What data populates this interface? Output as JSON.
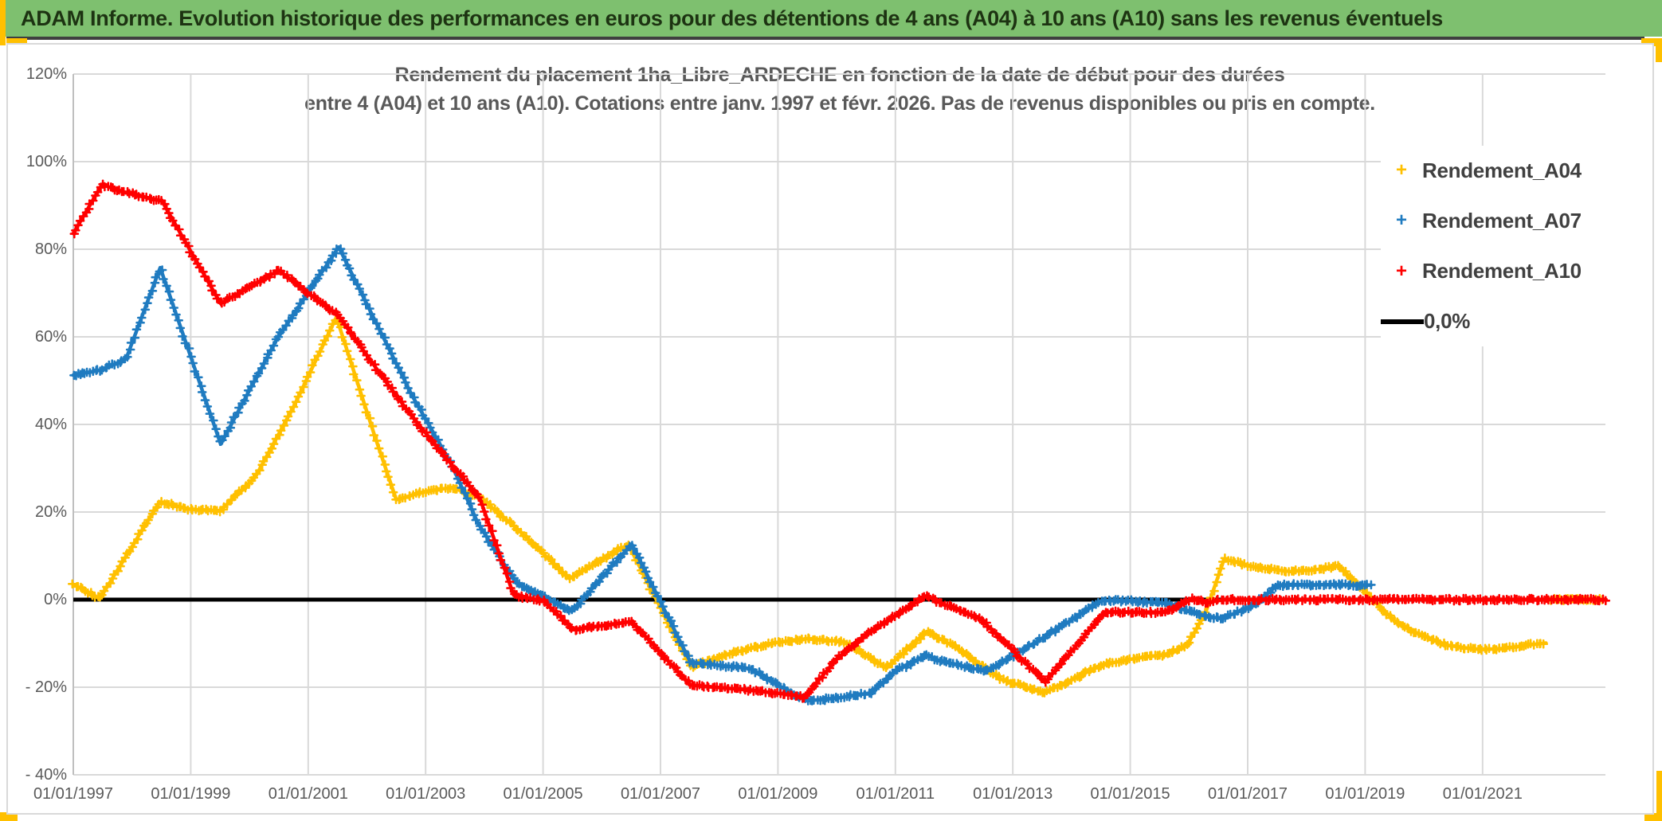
{
  "header": {
    "title": "ADAM Informe. Evolution historique des performances en euros pour des détentions de 4 ans (A04) à 10 ans (A10) sans les revenus éventuels",
    "bar_color": "#7EC06F",
    "accent_color": "#FFC000"
  },
  "chart_data": {
    "type": "scatter",
    "title_line1": "Rendement du placement 1ha_Libre_ARDECHE en fonction de la date de début pour des durées",
    "title_line2": "entre 4 (A04) et 10 ans (A10). Cotations entre janv. 1997 et févr. 2026. Pas de revenus disponibles ou pris en compte.",
    "xlabel": "",
    "ylabel": "",
    "ylim": [
      -40,
      120
    ],
    "x_range_years": [
      1997.0,
      2023.2
    ],
    "grid": true,
    "legend_position": "right-inside",
    "y_ticks": [
      {
        "label": "120%",
        "value": 120
      },
      {
        "label": "100%",
        "value": 100
      },
      {
        "label": "80%",
        "value": 80
      },
      {
        "label": "60%",
        "value": 60
      },
      {
        "label": "40%",
        "value": 40
      },
      {
        "label": "20%",
        "value": 20
      },
      {
        "label": "0%",
        "value": 0
      },
      {
        "label": "- 20%",
        "value": -20
      },
      {
        "label": "- 40%",
        "value": -40
      }
    ],
    "x_ticks": [
      {
        "label": "01/01/1997",
        "year": 1997
      },
      {
        "label": "01/01/1999",
        "year": 1999
      },
      {
        "label": "01/01/2001",
        "year": 2001
      },
      {
        "label": "01/01/2003",
        "year": 2003
      },
      {
        "label": "01/01/2005",
        "year": 2005
      },
      {
        "label": "01/01/2007",
        "year": 2007
      },
      {
        "label": "01/01/2009",
        "year": 2009
      },
      {
        "label": "01/01/2011",
        "year": 2011
      },
      {
        "label": "01/01/2013",
        "year": 2013
      },
      {
        "label": "01/01/2015",
        "year": 2015
      },
      {
        "label": "01/01/2017",
        "year": 2017
      },
      {
        "label": "01/01/2019",
        "year": 2019
      },
      {
        "label": "01/01/2021",
        "year": 2021
      }
    ],
    "legend_items": [
      {
        "label": "Rendement_A04",
        "marker": "+",
        "color": "#FFC000"
      },
      {
        "label": "Rendement_A07",
        "marker": "+",
        "color": "#1F7BC0"
      },
      {
        "label": "Rendement_A10",
        "marker": "+",
        "color": "#FF0000"
      },
      {
        "label": "0,0%",
        "marker": "line",
        "color": "#000000"
      }
    ],
    "reference_line": {
      "label": "0,0%",
      "value": 0,
      "color": "#000000"
    },
    "series": [
      {
        "name": "Rendement_A04",
        "color": "#FFC000",
        "keypoints": [
          [
            1997.0,
            3.5
          ],
          [
            1997.45,
            0.2
          ],
          [
            1998.47,
            22.3
          ],
          [
            1999.0,
            20.6
          ],
          [
            1999.5,
            20.3
          ],
          [
            2000.1,
            28.0
          ],
          [
            2000.77,
            44.5
          ],
          [
            2001.48,
            64.5
          ],
          [
            2002.13,
            37.5
          ],
          [
            2002.5,
            22.8
          ],
          [
            2003.0,
            24.7
          ],
          [
            2003.45,
            25.6
          ],
          [
            2003.93,
            23.3
          ],
          [
            2004.54,
            16.4
          ],
          [
            2005.45,
            4.8
          ],
          [
            2006.45,
            12.6
          ],
          [
            2007.52,
            -15.4
          ],
          [
            2008.13,
            -12.5
          ],
          [
            2008.88,
            -10.0
          ],
          [
            2009.5,
            -8.9
          ],
          [
            2010.13,
            -9.6
          ],
          [
            2010.85,
            -15.6
          ],
          [
            2011.53,
            -7.3
          ],
          [
            2012.03,
            -10.9
          ],
          [
            2012.8,
            -18.2
          ],
          [
            2013.52,
            -21.3
          ],
          [
            2014.02,
            -18.2
          ],
          [
            2014.51,
            -14.9
          ],
          [
            2015.05,
            -13.5
          ],
          [
            2015.6,
            -12.5
          ],
          [
            2015.97,
            -10.4
          ],
          [
            2016.28,
            -3.1
          ],
          [
            2016.6,
            9.3
          ],
          [
            2017.1,
            7.5
          ],
          [
            2017.73,
            6.4
          ],
          [
            2018.2,
            6.9
          ],
          [
            2018.55,
            7.8
          ],
          [
            2018.79,
            4.5
          ],
          [
            2019.18,
            -0.7
          ],
          [
            2019.54,
            -5.3
          ],
          [
            2019.94,
            -8.0
          ],
          [
            2020.4,
            -10.4
          ],
          [
            2020.85,
            -11.3
          ],
          [
            2021.3,
            -11.3
          ],
          [
            2021.76,
            -10.4
          ],
          [
            2022.08,
            -9.9
          ]
        ],
        "zero_fill": [
          2022.17,
          2023.08
        ]
      },
      {
        "name": "Rendement_A07",
        "color": "#1F7BC0",
        "keypoints": [
          [
            1997.0,
            51.3
          ],
          [
            1997.5,
            52.5
          ],
          [
            1997.9,
            55.0
          ],
          [
            1998.48,
            75.8
          ],
          [
            1999.51,
            35.5
          ],
          [
            2000.46,
            59.3
          ],
          [
            2000.95,
            69.1
          ],
          [
            2001.52,
            80.5
          ],
          [
            2002.77,
            46.6
          ],
          [
            2003.44,
            30.9
          ],
          [
            2003.89,
            17.5
          ],
          [
            2004.54,
            3.8
          ],
          [
            2004.9,
            1.5
          ],
          [
            2005.49,
            -2.7
          ],
          [
            2006.51,
            12.7
          ],
          [
            2007.51,
            -14.3
          ],
          [
            2008.55,
            -15.8
          ],
          [
            2009.0,
            -19.5
          ],
          [
            2009.5,
            -23.1
          ],
          [
            2010.0,
            -22.5
          ],
          [
            2010.58,
            -21.3
          ],
          [
            2011.0,
            -16.4
          ],
          [
            2011.53,
            -12.7
          ],
          [
            2011.76,
            -14.0
          ],
          [
            2012.56,
            -16.4
          ],
          [
            2013.76,
            -6.7
          ],
          [
            2014.51,
            -0.2
          ],
          [
            2015.0,
            -0.3
          ],
          [
            2015.63,
            -0.9
          ],
          [
            2016.01,
            -2.8
          ],
          [
            2016.55,
            -4.4
          ],
          [
            2017.1,
            -1.3
          ],
          [
            2017.5,
            3.3
          ],
          [
            2018.3,
            3.4
          ],
          [
            2019.1,
            3.3
          ]
        ],
        "zero_fill": null
      },
      {
        "name": "Rendement_A10",
        "color": "#FF0000",
        "keypoints": [
          [
            1997.0,
            83.6
          ],
          [
            1997.49,
            94.8
          ],
          [
            1997.79,
            93.3
          ],
          [
            1998.51,
            91.0
          ],
          [
            1999.51,
            67.6
          ],
          [
            2000.5,
            75.2
          ],
          [
            2000.77,
            72.4
          ],
          [
            2001.52,
            64.7
          ],
          [
            2002.36,
            49.1
          ],
          [
            2002.77,
            41.8
          ],
          [
            2003.44,
            30.9
          ],
          [
            2003.93,
            22.9
          ],
          [
            2004.5,
            1.0
          ],
          [
            2005.0,
            -0.3
          ],
          [
            2005.52,
            -6.8
          ],
          [
            2006.51,
            -5.0
          ],
          [
            2007.51,
            -19.5
          ],
          [
            2008.55,
            -20.7
          ],
          [
            2009.28,
            -21.8
          ],
          [
            2009.45,
            -22.4
          ],
          [
            2010.0,
            -13.5
          ],
          [
            2010.58,
            -7.3
          ],
          [
            2011.53,
            0.9
          ],
          [
            2011.76,
            -0.7
          ],
          [
            2012.47,
            -4.6
          ],
          [
            2013.55,
            -18.9
          ],
          [
            2014.57,
            -2.8
          ],
          [
            2015.6,
            -2.9
          ],
          [
            2016.05,
            0.3
          ],
          [
            2016.3,
            -0.7
          ],
          [
            2016.6,
            0.0
          ],
          [
            2023.1,
            0.0
          ]
        ],
        "zero_fill": null
      }
    ],
    "grid_color": "#D9D9D9",
    "axis_line_color": "#BFBFBF",
    "tick_label_color": "#595959"
  }
}
